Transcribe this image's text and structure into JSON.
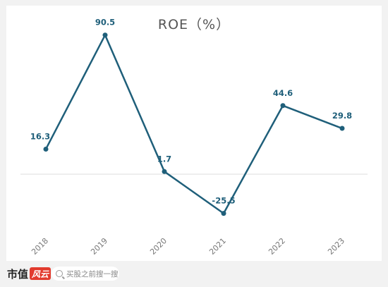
{
  "chart_data": {
    "type": "line",
    "title": "ROE（%）",
    "categories": [
      "2018",
      "2019",
      "2020",
      "2021",
      "2022",
      "2023"
    ],
    "series": [
      {
        "values": [
          16.3,
          90.5,
          1.7,
          -25.5,
          44.6,
          29.8
        ]
      }
    ],
    "data_labels": [
      "16.3",
      "90.5",
      "1.7",
      "-25.5",
      "44.6",
      "29.8"
    ],
    "zero_baseline": true,
    "grid": false,
    "line_color": "#1f5f7a"
  },
  "footer": {
    "brand_text": "市值",
    "brand_badge": "风云",
    "search_placeholder": "买股之前搜一搜"
  }
}
